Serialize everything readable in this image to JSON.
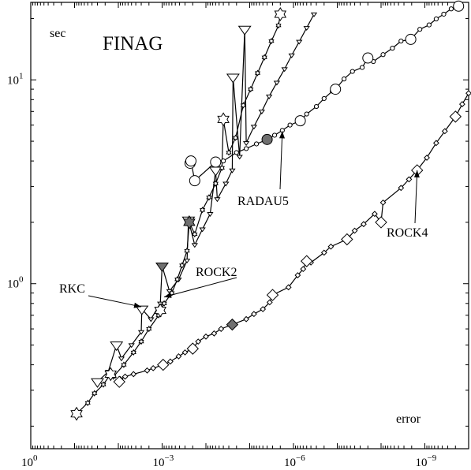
{
  "chart_data": {
    "type": "line",
    "title": "FINAG",
    "xlabel": "error",
    "ylabel": "sec",
    "x_scale": "log",
    "y_scale": "log",
    "x_reversed": true,
    "xlim": [
      1,
      1e-10
    ],
    "ylim": [
      0.155,
      24
    ],
    "x_ticks": [
      {
        "value": 1,
        "label": "10",
        "exp": "0"
      },
      {
        "value": 0.001,
        "label": "10",
        "exp": "−3"
      },
      {
        "value": 1e-06,
        "label": "10",
        "exp": "−6"
      },
      {
        "value": 1e-09,
        "label": "10",
        "exp": "−9"
      }
    ],
    "y_ticks": [
      {
        "value": 1,
        "label": "10",
        "exp": "0"
      },
      {
        "value": 10,
        "label": "10",
        "exp": "1"
      }
    ],
    "series": [
      {
        "name": "RKC",
        "marker": "triangle-down",
        "small_points": [
          [
            0.017,
            0.37
          ],
          [
            0.0085,
            0.43
          ],
          [
            0.005,
            0.5
          ],
          [
            0.003,
            0.58
          ],
          [
            0.0018,
            0.67
          ],
          [
            0.0011,
            0.8
          ],
          [
            0.00068,
            0.92
          ],
          [
            0.00042,
            1.05
          ],
          [
            0.00027,
            1.3
          ],
          [
            0.00018,
            1.55
          ],
          [
            0.00012,
            1.85
          ],
          [
            8e-05,
            2.2
          ],
          [
            5.5e-05,
            2.6
          ],
          [
            3.5e-05,
            3.1
          ],
          [
            2.5e-05,
            3.6
          ],
          [
            1.7e-05,
            4.2
          ],
          [
            1.2e-05,
            4.9
          ],
          [
            8e-06,
            5.9
          ],
          [
            5.3e-06,
            7.0
          ],
          [
            3.6e-06,
            8.3
          ],
          [
            2.4e-06,
            9.7
          ],
          [
            1.6e-06,
            11.3
          ],
          [
            1.1e-06,
            13.2
          ],
          [
            7.4e-07,
            15.4
          ],
          [
            5e-07,
            18.0
          ],
          [
            3.4e-07,
            21.0
          ]
        ],
        "large_points": [
          [
            0.03,
            0.33
          ],
          [
            0.011,
            0.5
          ],
          [
            0.0029,
            0.75
          ],
          [
            0.001,
            1.22
          ],
          [
            0.00025,
            2.05
          ],
          [
            6e-05,
            3.6
          ],
          [
            2.4e-05,
            10.3
          ],
          [
            1.3e-05,
            17.7
          ]
        ],
        "filled_points": [
          [
            0.001,
            1.22
          ]
        ]
      },
      {
        "name": "ROCK2",
        "marker": "star",
        "small_points": [
          [
            0.05,
            0.26
          ],
          [
            0.035,
            0.29
          ],
          [
            0.022,
            0.32
          ],
          [
            0.013,
            0.35
          ],
          [
            0.0075,
            0.4
          ],
          [
            0.0045,
            0.46
          ],
          [
            0.003,
            0.52
          ],
          [
            0.002,
            0.6
          ],
          [
            0.0012,
            0.7
          ],
          [
            0.0009,
            0.8
          ],
          [
            0.0006,
            0.9
          ],
          [
            0.00045,
            1.05
          ],
          [
            0.00035,
            1.23
          ],
          [
            0.00027,
            1.45
          ],
          [
            0.00018,
            1.75
          ],
          [
            0.00012,
            2.3
          ],
          [
            8.5e-05,
            2.65
          ],
          [
            6e-05,
            3.1
          ],
          [
            4.3e-05,
            3.7
          ],
          [
            3e-05,
            4.4
          ],
          [
            2.1e-05,
            5.2
          ],
          [
            1.4e-05,
            7.5
          ],
          [
            9.5e-06,
            9.0
          ],
          [
            6.6e-06,
            10.8
          ],
          [
            4.6e-06,
            12.9
          ],
          [
            3.2e-06,
            15.5
          ],
          [
            2.2e-06,
            18.5
          ]
        ],
        "large_points": [
          [
            0.09,
            0.23
          ],
          [
            0.015,
            0.36
          ],
          [
            0.0011,
            0.74
          ],
          [
            0.00024,
            2.0
          ],
          [
            4e-05,
            6.4
          ],
          [
            2e-06,
            21.0
          ]
        ],
        "filled_points": [
          [
            0.00024,
            2.0
          ]
        ]
      },
      {
        "name": "RADAU5",
        "marker": "circle",
        "small_points": [
          [
            4e-05,
            4.0
          ],
          [
            2e-05,
            4.4
          ],
          [
            1.2e-05,
            4.6
          ],
          [
            7e-06,
            4.85
          ],
          [
            2.7e-06,
            5.35
          ],
          [
            1.8e-06,
            5.65
          ],
          [
            1.2e-06,
            6.0
          ],
          [
            5e-07,
            6.8
          ],
          [
            3e-07,
            7.4
          ],
          [
            2e-07,
            8.1
          ],
          [
            1.3e-07,
            8.8
          ],
          [
            7e-08,
            10.1
          ],
          [
            4.5e-08,
            11.0
          ],
          [
            2.7e-08,
            11.5
          ],
          [
            1.5e-08,
            12.3
          ],
          [
            9e-09,
            13.3
          ],
          [
            5.5e-09,
            14.3
          ],
          [
            3.5e-09,
            15.5
          ],
          [
            1.3e-09,
            17.7
          ],
          [
            8e-10,
            18.6
          ],
          [
            5.5e-10,
            19.9
          ],
          [
            3.7e-10,
            21.0
          ],
          [
            2.5e-10,
            22.3
          ]
        ],
        "large_points": [
          [
            0.00018,
            3.2
          ],
          [
            0.00023,
            3.9
          ],
          [
            0.00022,
            4.0
          ],
          [
            6e-05,
            3.95
          ],
          [
            4e-06,
            5.1
          ],
          [
            7e-07,
            6.3
          ],
          [
            1.1e-07,
            9.0
          ],
          [
            2e-08,
            12.8
          ],
          [
            2.1e-09,
            15.8
          ],
          [
            1.7e-10,
            23.0
          ]
        ],
        "filled_points": [
          [
            4e-06,
            5.1
          ]
        ]
      },
      {
        "name": "ROCK4",
        "marker": "diamond",
        "small_points": [
          [
            0.009,
            0.34
          ],
          [
            0.007,
            0.35
          ],
          [
            0.0045,
            0.36
          ],
          [
            0.0022,
            0.375
          ],
          [
            0.0016,
            0.385
          ],
          [
            0.00065,
            0.415
          ],
          [
            0.00042,
            0.44
          ],
          [
            0.0003,
            0.46
          ],
          [
            0.00015,
            0.52
          ],
          [
            0.0001,
            0.55
          ],
          [
            6.5e-05,
            0.57
          ],
          [
            4.5e-05,
            0.6
          ],
          [
            1.2e-05,
            0.67
          ],
          [
            8e-06,
            0.71
          ],
          [
            5e-06,
            0.75
          ],
          [
            3.5e-06,
            0.81
          ],
          [
            1.3e-06,
            0.96
          ],
          [
            8e-07,
            1.1
          ],
          [
            6e-07,
            1.18
          ],
          [
            4e-07,
            1.27
          ],
          [
            2e-07,
            1.42
          ],
          [
            1.4e-07,
            1.52
          ],
          [
            4e-08,
            1.82
          ],
          [
            2.5e-08,
            1.96
          ],
          [
            1.4e-08,
            2.2
          ],
          [
            9e-09,
            2.5
          ],
          [
            3.5e-09,
            2.95
          ],
          [
            2.3e-09,
            3.25
          ],
          [
            9e-10,
            4.15
          ],
          [
            5.5e-10,
            4.9
          ],
          [
            3.5e-10,
            5.6
          ],
          [
            1.4e-10,
            7.6
          ],
          [
            1e-10,
            8.6
          ]
        ],
        "large_points": [
          [
            0.0095,
            0.33
          ],
          [
            0.00095,
            0.4
          ],
          [
            0.0002,
            0.48
          ],
          [
            2.5e-05,
            0.63
          ],
          [
            3e-06,
            0.88
          ],
          [
            5e-07,
            1.29
          ],
          [
            6e-08,
            1.65
          ],
          [
            1e-08,
            2.0
          ],
          [
            1.5e-09,
            3.6
          ],
          [
            2e-10,
            6.6
          ]
        ],
        "filled_points": [
          [
            2.5e-05,
            0.63
          ]
        ]
      }
    ],
    "annotations": [
      {
        "text": "RKC",
        "target": [
          0.003,
          0.77
        ],
        "anchor": "upper-left"
      },
      {
        "text": "ROCK2",
        "target": [
          0.0009,
          0.86
        ],
        "anchor": "center"
      },
      {
        "text": "RADAU5",
        "target": [
          1.8e-06,
          5.6
        ],
        "anchor": "below"
      },
      {
        "text": "ROCK4",
        "target": [
          1.5e-09,
          3.6
        ],
        "anchor": "lower-left"
      }
    ]
  }
}
